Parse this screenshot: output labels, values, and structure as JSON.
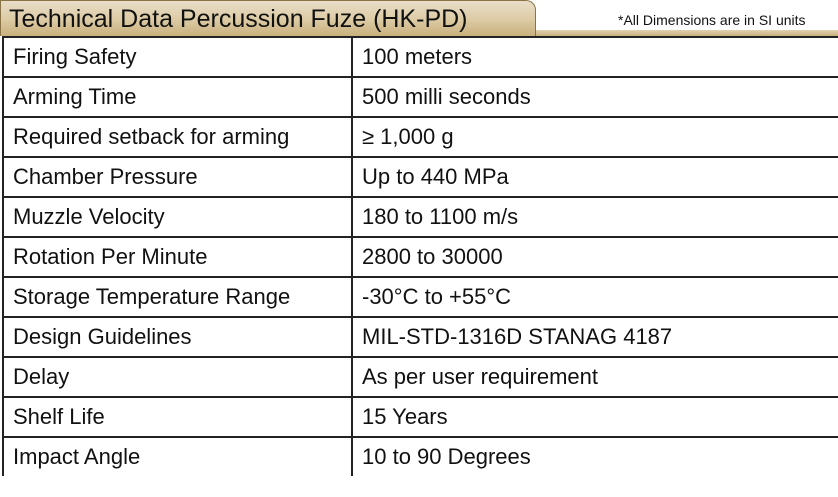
{
  "header": {
    "title": "Technical Data Percussion Fuze (HK-PD)",
    "note": "*All Dimensions are in SI units"
  },
  "table": {
    "rows": [
      {
        "label": "Firing Safety",
        "value": "100  meters"
      },
      {
        "label": "Arming Time",
        "value": "500 milli seconds"
      },
      {
        "label": "Required setback for arming",
        "value": "≥ 1,000 g"
      },
      {
        "label": "Chamber Pressure",
        "value": "Up to 440 MPa"
      },
      {
        "label": "Muzzle Velocity",
        "value": "180 to 1100 m/s"
      },
      {
        "label": "Rotation Per Minute",
        "value": "2800 to 30000"
      },
      {
        "label": "Storage Temperature Range",
        "value": "-30°C to +55°C"
      },
      {
        "label": "Design Guidelines",
        "value": "MIL-STD-1316D STANAG 4187"
      },
      {
        "label": "Delay",
        "value": "As per user requirement"
      },
      {
        "label": "Shelf Life",
        "value": "15 Years"
      },
      {
        "label": "Impact Angle",
        "value": "10 to 90 Degrees"
      }
    ]
  },
  "colors": {
    "tab_fill": "#dccaa3",
    "tab_border": "#8a7446",
    "grid_line": "#222222"
  }
}
